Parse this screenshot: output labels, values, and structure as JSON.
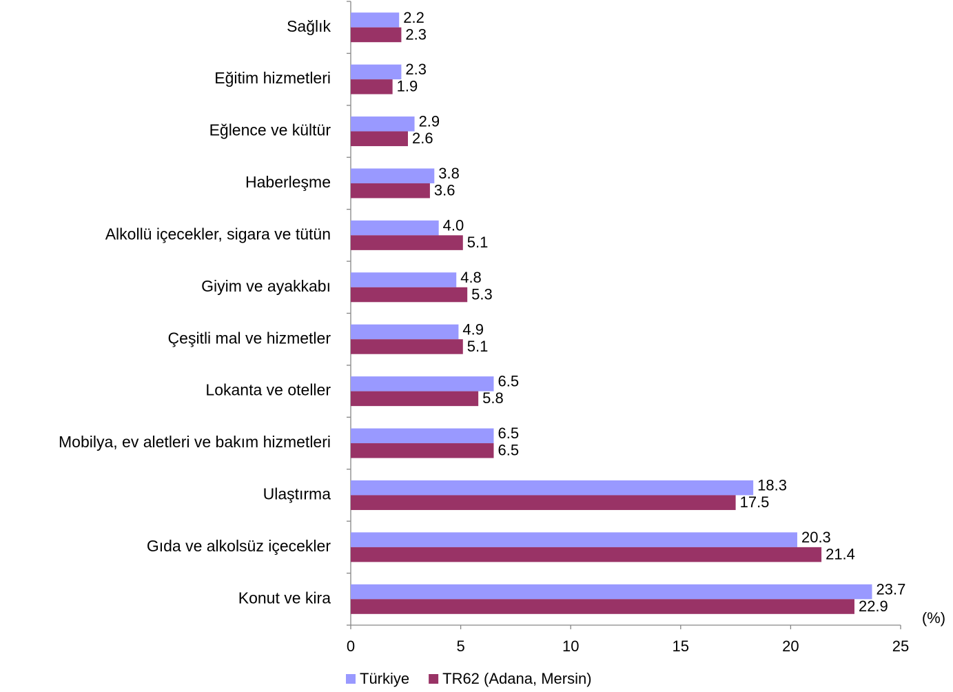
{
  "chart_data": {
    "type": "hbar",
    "categories": [
      "Sağlık",
      "Eğitim hizmetleri",
      "Eğlence ve kültür",
      "Haberleşme",
      "Alkollü içecekler, sigara ve tütün",
      "Giyim ve ayakkabı",
      "Çeşitli mal ve hizmetler",
      "Lokanta ve oteller",
      "Mobilya, ev aletleri ve bakım hizmetleri",
      "Ulaştırma",
      "Gıda ve alkolsüz içecekler",
      "Konut ve kira"
    ],
    "series": [
      {
        "name": "Türkiye",
        "color": "#9999ff",
        "values": [
          2.2,
          2.3,
          2.9,
          3.8,
          4.0,
          4.8,
          4.9,
          6.5,
          6.5,
          18.3,
          20.3,
          23.7
        ],
        "value_labels": [
          "2.2",
          "2.3",
          "2.9",
          "3.8",
          "4.0",
          "4.8",
          "4.9",
          "6.5",
          "6.5",
          "18.3",
          "20.3",
          "23.7"
        ]
      },
      {
        "name": "TR62 (Adana, Mersin)",
        "color": "#993366",
        "values": [
          2.3,
          1.9,
          2.6,
          3.6,
          5.1,
          5.3,
          5.1,
          5.8,
          6.5,
          17.5,
          21.4,
          22.9
        ],
        "value_labels": [
          "2.3",
          "1.9",
          "2.6",
          "3.6",
          "5.1",
          "5.3",
          "5.1",
          "5.8",
          "6.5",
          "17.5",
          "21.4",
          "22.9"
        ]
      }
    ],
    "x_label": "(%)",
    "xlim": [
      0,
      25
    ],
    "xticks": [
      0,
      5,
      10,
      15,
      20,
      25
    ],
    "legend": "bottom"
  }
}
